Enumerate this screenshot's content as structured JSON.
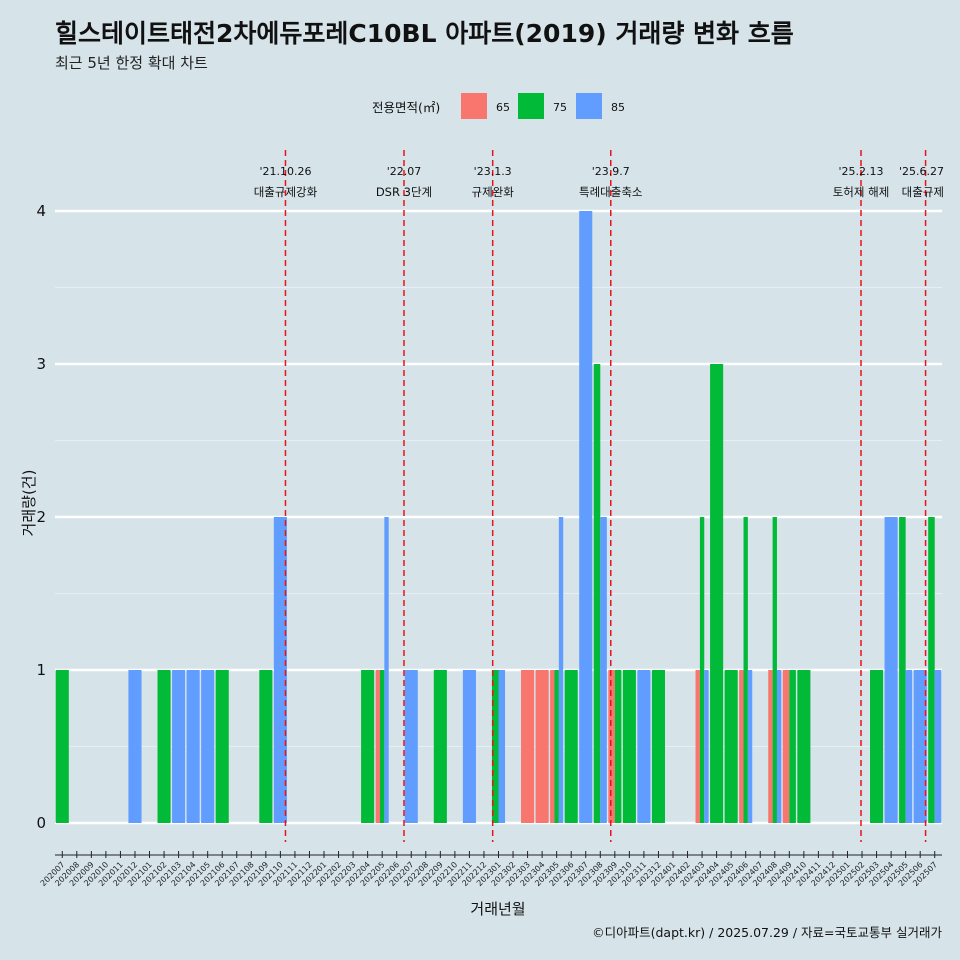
{
  "header": {
    "title": "힐스테이트태전2차에듀포레C10BL 아파트(2019) 거래량 변화 흐름",
    "subtitle": "최근 5년 한정 확대 차트"
  },
  "caption": "©디아파트(dapt.kr) / 2025.07.29 / 자료=국토교통부 실거래가",
  "chart_data": {
    "type": "bar",
    "xlabel": "거래년월",
    "ylabel": "거래량(건)",
    "ylim": [
      -0.2,
      4.4
    ],
    "yticks": [
      0,
      1,
      2,
      3,
      4
    ],
    "grid": true,
    "legend": {
      "title": "전용면적(㎡)",
      "position": "top",
      "items": [
        {
          "name": "65",
          "color": "#f8766d"
        },
        {
          "name": "75",
          "color": "#00ba38"
        },
        {
          "name": "85",
          "color": "#619cff"
        }
      ]
    },
    "categories": [
      "202007",
      "202008",
      "202009",
      "202010",
      "202011",
      "202012",
      "202101",
      "202102",
      "202103",
      "202104",
      "202105",
      "202106",
      "202107",
      "202108",
      "202109",
      "202110",
      "202111",
      "202112",
      "202201",
      "202202",
      "202203",
      "202204",
      "202205",
      "202206",
      "202207",
      "202208",
      "202209",
      "202210",
      "202211",
      "202212",
      "202301",
      "202302",
      "202303",
      "202304",
      "202305",
      "202306",
      "202307",
      "202308",
      "202309",
      "202310",
      "202311",
      "202312",
      "202401",
      "202402",
      "202403",
      "202404",
      "202405",
      "202406",
      "202407",
      "202408",
      "202409",
      "202410",
      "202411",
      "202412",
      "202501",
      "202502",
      "202503",
      "202504",
      "202505",
      "202506",
      "202507"
    ],
    "series": [
      {
        "name": "65",
        "color": "#f8766d",
        "values": [
          0,
          0,
          0,
          0,
          0,
          0,
          0,
          0,
          0,
          0,
          0,
          0,
          0,
          0,
          0,
          0,
          0,
          0,
          0,
          0,
          0,
          0,
          1,
          0,
          0,
          0,
          0,
          0,
          0,
          0,
          0,
          0,
          1,
          1,
          1,
          0,
          0,
          0,
          1,
          0,
          0,
          0,
          0,
          0,
          1,
          0,
          0,
          1,
          0,
          1,
          1,
          0,
          0,
          0,
          0,
          0,
          0,
          0,
          0,
          0,
          0
        ]
      },
      {
        "name": "75",
        "color": "#00ba38",
        "values": [
          1,
          0,
          0,
          0,
          0,
          0,
          0,
          1,
          0,
          0,
          0,
          1,
          0,
          0,
          1,
          0,
          0,
          0,
          0,
          0,
          0,
          1,
          1,
          0,
          0,
          0,
          1,
          0,
          0,
          0,
          1,
          0,
          0,
          0,
          1,
          1,
          0,
          3,
          1,
          1,
          0,
          1,
          0,
          0,
          2,
          3,
          1,
          2,
          0,
          2,
          1,
          1,
          0,
          0,
          0,
          0,
          1,
          0,
          2,
          0,
          2
        ]
      },
      {
        "name": "85",
        "color": "#619cff",
        "values": [
          0,
          0,
          0,
          0,
          0,
          1,
          0,
          0,
          1,
          1,
          1,
          0,
          0,
          0,
          0,
          2,
          0,
          0,
          0,
          0,
          0,
          0,
          2,
          0,
          1,
          0,
          0,
          0,
          1,
          0,
          1,
          0,
          0,
          0,
          2,
          0,
          4,
          2,
          0,
          0,
          1,
          0,
          0,
          0,
          1,
          0,
          0,
          1,
          0,
          1,
          0,
          0,
          0,
          0,
          0,
          0,
          0,
          2,
          1,
          1,
          1
        ]
      }
    ],
    "events": [
      {
        "date": "'21.10.26",
        "label": "대출규제강화",
        "category": "202110",
        "offset": 0.85
      },
      {
        "date": "'22.07",
        "label": "DSR 3단계",
        "category": "202207",
        "offset": 0.0
      },
      {
        "date": "'23.1.3",
        "label": "규제완화",
        "category": "202301",
        "offset": 0.1
      },
      {
        "date": "'23.9.7",
        "label": "특례대출축소",
        "category": "202309",
        "offset": 0.22
      },
      {
        "date": "'25.2.13",
        "label": "토허제 해제",
        "category": "202502",
        "offset": 0.43
      },
      {
        "date": "'25.6.27",
        "label": "대출규제",
        "category": "202506",
        "offset": 0.87
      }
    ]
  }
}
